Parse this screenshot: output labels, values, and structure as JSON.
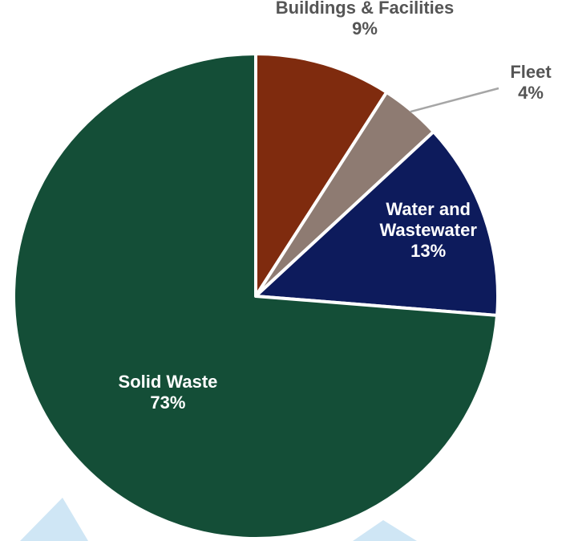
{
  "chart_data": {
    "type": "pie",
    "slices": [
      {
        "label": "Buildings  & Facilities",
        "value_text": "9%",
        "value": 9,
        "color": "#7f2b0e",
        "label_lines": [
          "Buildings  & Facilities"
        ],
        "label_color": "#555555",
        "label_position": "outside-top"
      },
      {
        "label": "Fleet",
        "value_text": "4%",
        "value": 4,
        "color": "#8e7b72",
        "label_lines": [
          "Fleet"
        ],
        "label_color": "#555555",
        "label_position": "outside-right"
      },
      {
        "label": "Water and Wastewater",
        "value_text": "13%",
        "value": 13,
        "color": "#0d1b5c",
        "label_lines": [
          "Water and",
          "Wastewater"
        ],
        "label_color": "#ffffff",
        "label_position": "inside"
      },
      {
        "label": "Solid Waste",
        "value_text": "73%",
        "value": 73,
        "color": "#144e37",
        "label_lines": [
          "Solid Waste"
        ],
        "label_color": "#ffffff",
        "label_position": "inside"
      }
    ],
    "start_angle": "12 o'clock",
    "direction": "clockwise",
    "legend": "none"
  },
  "colors": {
    "slice_border": "#ffffff",
    "leader_line": "#a6a6a6",
    "watermark": "#cfe6f5"
  }
}
